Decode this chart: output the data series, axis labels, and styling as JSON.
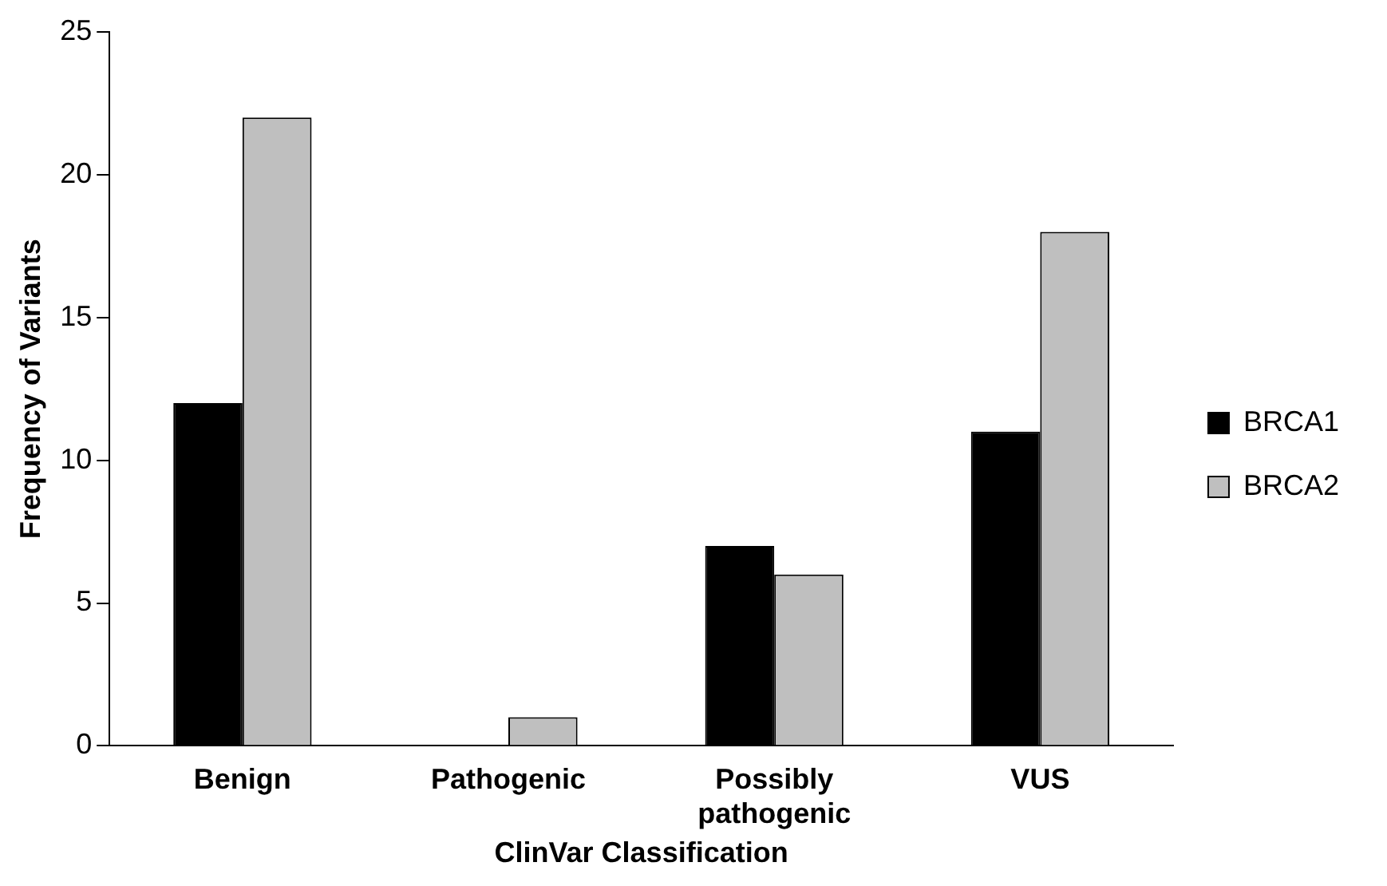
{
  "chart_data": {
    "type": "bar",
    "xlabel": "ClinVar Classification",
    "ylabel": "Frequency of Variants",
    "categories": [
      "Benign",
      "Pathogenic",
      "Possibly pathogenic",
      "VUS"
    ],
    "series": [
      {
        "name": "BRCA1",
        "color": "#000000",
        "values": [
          12,
          0,
          7,
          11
        ]
      },
      {
        "name": "BRCA2",
        "color": "#bfbfbf",
        "values": [
          22,
          1,
          6,
          18
        ]
      }
    ],
    "ylim": [
      0,
      25
    ],
    "yticks": [
      0,
      5,
      10,
      15,
      20,
      25
    ],
    "grid": false,
    "legend": "right"
  }
}
